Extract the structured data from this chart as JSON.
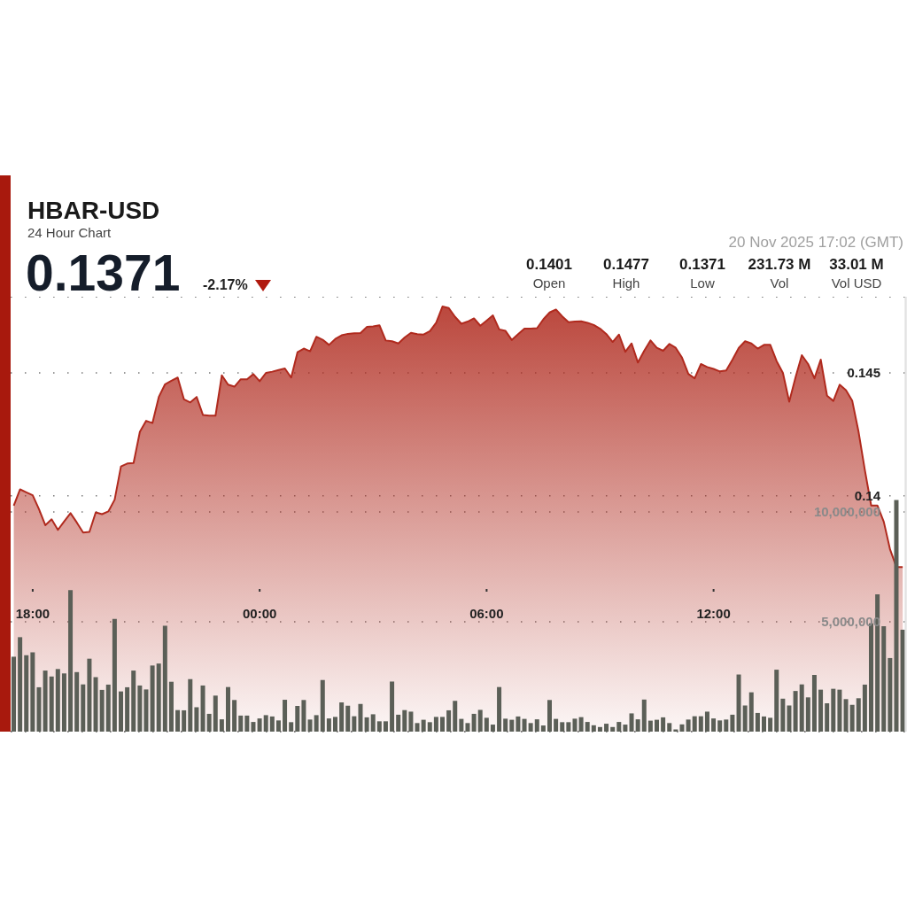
{
  "chart_data": {
    "type": "area",
    "title": "HBAR-USD",
    "subtitle": "24 Hour Chart",
    "annotations": [
      "0.1371",
      "-2.17%",
      "20 Nov 2025 17:02 (GMT)",
      "0.1401",
      "Open",
      "0.1477",
      "High",
      "0.1371",
      "Low",
      "231.73 M",
      "Vol",
      "33.01 M",
      "Vol USD"
    ],
    "x": [
      "2025-11-19T17:30",
      "2025-11-19T17:40",
      "2025-11-19T17:50",
      "2025-11-19T18:00",
      "2025-11-19T18:10",
      "2025-11-19T18:20",
      "2025-11-19T18:30",
      "2025-11-19T18:40",
      "2025-11-19T18:50",
      "2025-11-19T19:00",
      "2025-11-19T19:10",
      "2025-11-19T19:20",
      "2025-11-19T19:30",
      "2025-11-19T19:40",
      "2025-11-19T19:50",
      "2025-11-19T20:00",
      "2025-11-19T20:10",
      "2025-11-19T20:20",
      "2025-11-19T20:30",
      "2025-11-19T20:40",
      "2025-11-19T20:50",
      "2025-11-19T21:00",
      "2025-11-19T21:10",
      "2025-11-19T21:20",
      "2025-11-19T21:30",
      "2025-11-19T21:40",
      "2025-11-19T21:50",
      "2025-11-19T22:00",
      "2025-11-19T22:10",
      "2025-11-19T22:20",
      "2025-11-19T22:30",
      "2025-11-19T22:40",
      "2025-11-19T22:50",
      "2025-11-19T23:00",
      "2025-11-19T23:10",
      "2025-11-19T23:20",
      "2025-11-19T23:30",
      "2025-11-19T23:40",
      "2025-11-19T23:50",
      "2025-11-20T00:00",
      "2025-11-20T00:10",
      "2025-11-20T00:20",
      "2025-11-20T00:30",
      "2025-11-20T00:40",
      "2025-11-20T00:50",
      "2025-11-20T01:00",
      "2025-11-20T01:10",
      "2025-11-20T01:20",
      "2025-11-20T01:30",
      "2025-11-20T01:40",
      "2025-11-20T01:50",
      "2025-11-20T02:00",
      "2025-11-20T02:10",
      "2025-11-20T02:20",
      "2025-11-20T02:30",
      "2025-11-20T02:40",
      "2025-11-20T02:50",
      "2025-11-20T03:00",
      "2025-11-20T03:10",
      "2025-11-20T03:20",
      "2025-11-20T03:30",
      "2025-11-20T03:40",
      "2025-11-20T03:50",
      "2025-11-20T04:00",
      "2025-11-20T04:10",
      "2025-11-20T04:20",
      "2025-11-20T04:30",
      "2025-11-20T04:40",
      "2025-11-20T04:50",
      "2025-11-20T05:00",
      "2025-11-20T05:10",
      "2025-11-20T05:20",
      "2025-11-20T05:30",
      "2025-11-20T05:40",
      "2025-11-20T05:50",
      "2025-11-20T06:00",
      "2025-11-20T06:10",
      "2025-11-20T06:20",
      "2025-11-20T06:30",
      "2025-11-20T06:40",
      "2025-11-20T06:50",
      "2025-11-20T07:00",
      "2025-11-20T07:10",
      "2025-11-20T07:20",
      "2025-11-20T07:30",
      "2025-11-20T07:40",
      "2025-11-20T07:50",
      "2025-11-20T08:00",
      "2025-11-20T08:10",
      "2025-11-20T08:20",
      "2025-11-20T08:30",
      "2025-11-20T08:40",
      "2025-11-20T08:50",
      "2025-11-20T09:00",
      "2025-11-20T09:10",
      "2025-11-20T09:20",
      "2025-11-20T09:30",
      "2025-11-20T09:40",
      "2025-11-20T09:50",
      "2025-11-20T10:00",
      "2025-11-20T10:10",
      "2025-11-20T10:20",
      "2025-11-20T10:30",
      "2025-11-20T10:40",
      "2025-11-20T10:50",
      "2025-11-20T11:00",
      "2025-11-20T11:10",
      "2025-11-20T11:20",
      "2025-11-20T11:30",
      "2025-11-20T11:40",
      "2025-11-20T11:50",
      "2025-11-20T12:00",
      "2025-11-20T12:10",
      "2025-11-20T12:20",
      "2025-11-20T12:30",
      "2025-11-20T12:40",
      "2025-11-20T12:50",
      "2025-11-20T13:00",
      "2025-11-20T13:10",
      "2025-11-20T13:20",
      "2025-11-20T13:30",
      "2025-11-20T13:40",
      "2025-11-20T13:50",
      "2025-11-20T14:00",
      "2025-11-20T14:10",
      "2025-11-20T14:20",
      "2025-11-20T14:30",
      "2025-11-20T14:40",
      "2025-11-20T14:50",
      "2025-11-20T15:00",
      "2025-11-20T15:10",
      "2025-11-20T15:20",
      "2025-11-20T15:30",
      "2025-11-20T15:40",
      "2025-11-20T15:50",
      "2025-11-20T16:00",
      "2025-11-20T16:10",
      "2025-11-20T16:20",
      "2025-11-20T16:30",
      "2025-11-20T16:40",
      "2025-11-20T16:50",
      "2025-11-20T17:00"
    ],
    "series": [
      {
        "color": "#b02a1e",
        "values": [
          0.1396,
          0.14026,
          0.14014,
          0.14002,
          0.13945,
          0.1388,
          0.13904,
          0.13861,
          0.13896,
          0.13929,
          0.13891,
          0.1385,
          0.13853,
          0.13932,
          0.13925,
          0.13936,
          0.13984,
          0.14119,
          0.14131,
          0.14133,
          0.1426,
          0.14305,
          0.14296,
          0.14402,
          0.14454,
          0.14468,
          0.14481,
          0.14392,
          0.1438,
          0.14402,
          0.14329,
          0.14326,
          0.14326,
          0.1449,
          0.14452,
          0.14444,
          0.14474,
          0.14474,
          0.14495,
          0.14466,
          0.145,
          0.14505,
          0.14512,
          0.14518,
          0.14481,
          0.14584,
          0.14599,
          0.14588,
          0.14647,
          0.14635,
          0.14614,
          0.14638,
          0.14653,
          0.14659,
          0.14661,
          0.14662,
          0.14687,
          0.14689,
          0.14694,
          0.14632,
          0.14629,
          0.1462,
          0.14644,
          0.14663,
          0.14658,
          0.14656,
          0.1467,
          0.14704,
          0.1477,
          0.14764,
          0.14728,
          0.147,
          0.14709,
          0.14722,
          0.14692,
          0.14713,
          0.14734,
          0.14677,
          0.14671,
          0.14634,
          0.14658,
          0.1468,
          0.1468,
          0.14682,
          0.14718,
          0.14746,
          0.14758,
          0.1473,
          0.14706,
          0.14709,
          0.1471,
          0.14704,
          0.14695,
          0.1468,
          0.14658,
          0.14626,
          0.14656,
          0.14586,
          0.1462,
          0.14542,
          0.1459,
          0.14632,
          0.14602,
          0.1459,
          0.14618,
          0.14602,
          0.14562,
          0.14496,
          0.14478,
          0.14536,
          0.14524,
          0.14516,
          0.14506,
          0.1451,
          0.14554,
          0.14602,
          0.14629,
          0.1462,
          0.14599,
          0.14614,
          0.14614,
          0.14548,
          0.145,
          0.14383,
          0.14482,
          0.14572,
          0.14536,
          0.14478,
          0.14554,
          0.14407,
          0.14386,
          0.14452,
          0.1443,
          0.14386,
          0.1426,
          0.14104,
          0.1396,
          0.1396,
          0.13894,
          0.13781,
          0.1371,
          0.1371
        ]
      },
      {
        "type": "bar",
        "axis": "y2",
        "color": "#5b5f57",
        "values": [
          3410000,
          4300000,
          3480000,
          3610000,
          2020000,
          2780000,
          2510000,
          2850000,
          2650000,
          6440000,
          2710000,
          2150000,
          3320000,
          2480000,
          1900000,
          2140000,
          5130000,
          1830000,
          2020000,
          2780000,
          2100000,
          1920000,
          3010000,
          3100000,
          4820000,
          2270000,
          980000,
          970000,
          2390000,
          1110000,
          2100000,
          810000,
          1640000,
          560000,
          2030000,
          1440000,
          730000,
          730000,
          440000,
          600000,
          750000,
          690000,
          510000,
          1450000,
          430000,
          1170000,
          1440000,
          550000,
          750000,
          2350000,
          600000,
          670000,
          1330000,
          1180000,
          700000,
          1260000,
          650000,
          790000,
          470000,
          470000,
          2280000,
          770000,
          980000,
          910000,
          390000,
          540000,
          430000,
          670000,
          670000,
          970000,
          1400000,
          580000,
          390000,
          810000,
          990000,
          630000,
          320000,
          2030000,
          590000,
          540000,
          690000,
          580000,
          390000,
          560000,
          280000,
          1440000,
          580000,
          430000,
          430000,
          590000,
          660000,
          440000,
          290000,
          210000,
          360000,
          210000,
          440000,
          320000,
          830000,
          560000,
          1460000,
          500000,
          540000,
          650000,
          390000,
          100000,
          330000,
          550000,
          700000,
          700000,
          910000,
          600000,
          510000,
          550000,
          770000,
          2600000,
          1190000,
          1790000,
          850000,
          690000,
          630000,
          2820000,
          1500000,
          1190000,
          1850000,
          2150000,
          1560000,
          2580000,
          1910000,
          1290000,
          1950000,
          1910000,
          1480000,
          1220000,
          1520000,
          2140000,
          4930000,
          6250000,
          4800000,
          3350000,
          10550000,
          4640000
        ]
      }
    ],
    "xlim": [
      "2025-11-19T17:25",
      "2025-11-20T17:04"
    ],
    "xticks": [
      {
        "value": "2025-11-19T18:00",
        "label": "18:00"
      },
      {
        "value": "2025-11-20T00:00",
        "label": "00:00"
      },
      {
        "value": "2025-11-20T06:00",
        "label": "06:00"
      },
      {
        "value": "2025-11-20T12:00",
        "label": "12:00"
      }
    ],
    "ylim": [
      0.1304,
      0.1481
    ],
    "yticks": [
      0.14,
      0.145
    ],
    "y2lim": [
      0,
      19800000
    ],
    "y2ticks": [
      {
        "value": 5000000,
        "label": "5,000,000"
      },
      {
        "value": 10000000,
        "label": "10,000,000"
      }
    ],
    "grid": "y"
  }
}
